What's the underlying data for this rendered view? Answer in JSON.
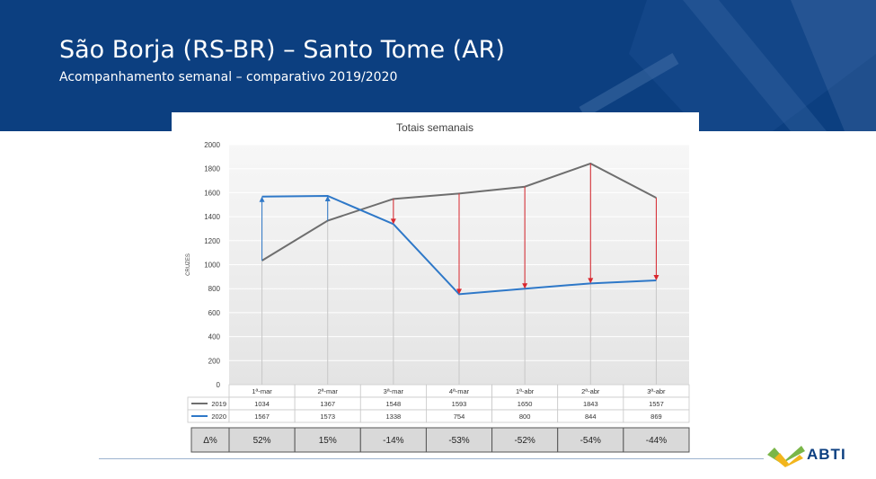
{
  "page": {
    "title": "São Borja (RS-BR) – Santo Tome (AR)",
    "subtitle": "Acompanhamento semanal – comparativo 2019/2020",
    "logo_text": "ABTI"
  },
  "colors": {
    "header_bg": "#0c3f80",
    "series_2019": "#6e6e6e",
    "series_2020": "#2e78c8",
    "arrow_down": "#d9272e",
    "arrow_up": "#2e78c8",
    "logo_green": "#7ab648",
    "logo_yellow": "#f2b51c"
  },
  "chart_data": {
    "type": "line",
    "title": "Totais semanais",
    "ylabel": "CRUZES",
    "xlabel": "",
    "ylim": [
      0,
      2000
    ],
    "yticks": [
      0,
      200,
      400,
      600,
      800,
      1000,
      1200,
      1400,
      1600,
      1800,
      2000
    ],
    "categories": [
      "1ª-mar",
      "2ª-mar",
      "3ª-mar",
      "4ª-mar",
      "1ª-abr",
      "2ª-abr",
      "3ª-abr"
    ],
    "series": [
      {
        "name": "2019",
        "values": [
          1034,
          1367,
          1548,
          1593,
          1650,
          1843,
          1557
        ]
      },
      {
        "name": "2020",
        "values": [
          1567,
          1573,
          1338,
          754,
          800,
          844,
          869
        ]
      }
    ],
    "delta_label": "Δ%",
    "delta": [
      "52%",
      "15%",
      "-14%",
      "-53%",
      "-52%",
      "-54%",
      "-44%"
    ]
  }
}
